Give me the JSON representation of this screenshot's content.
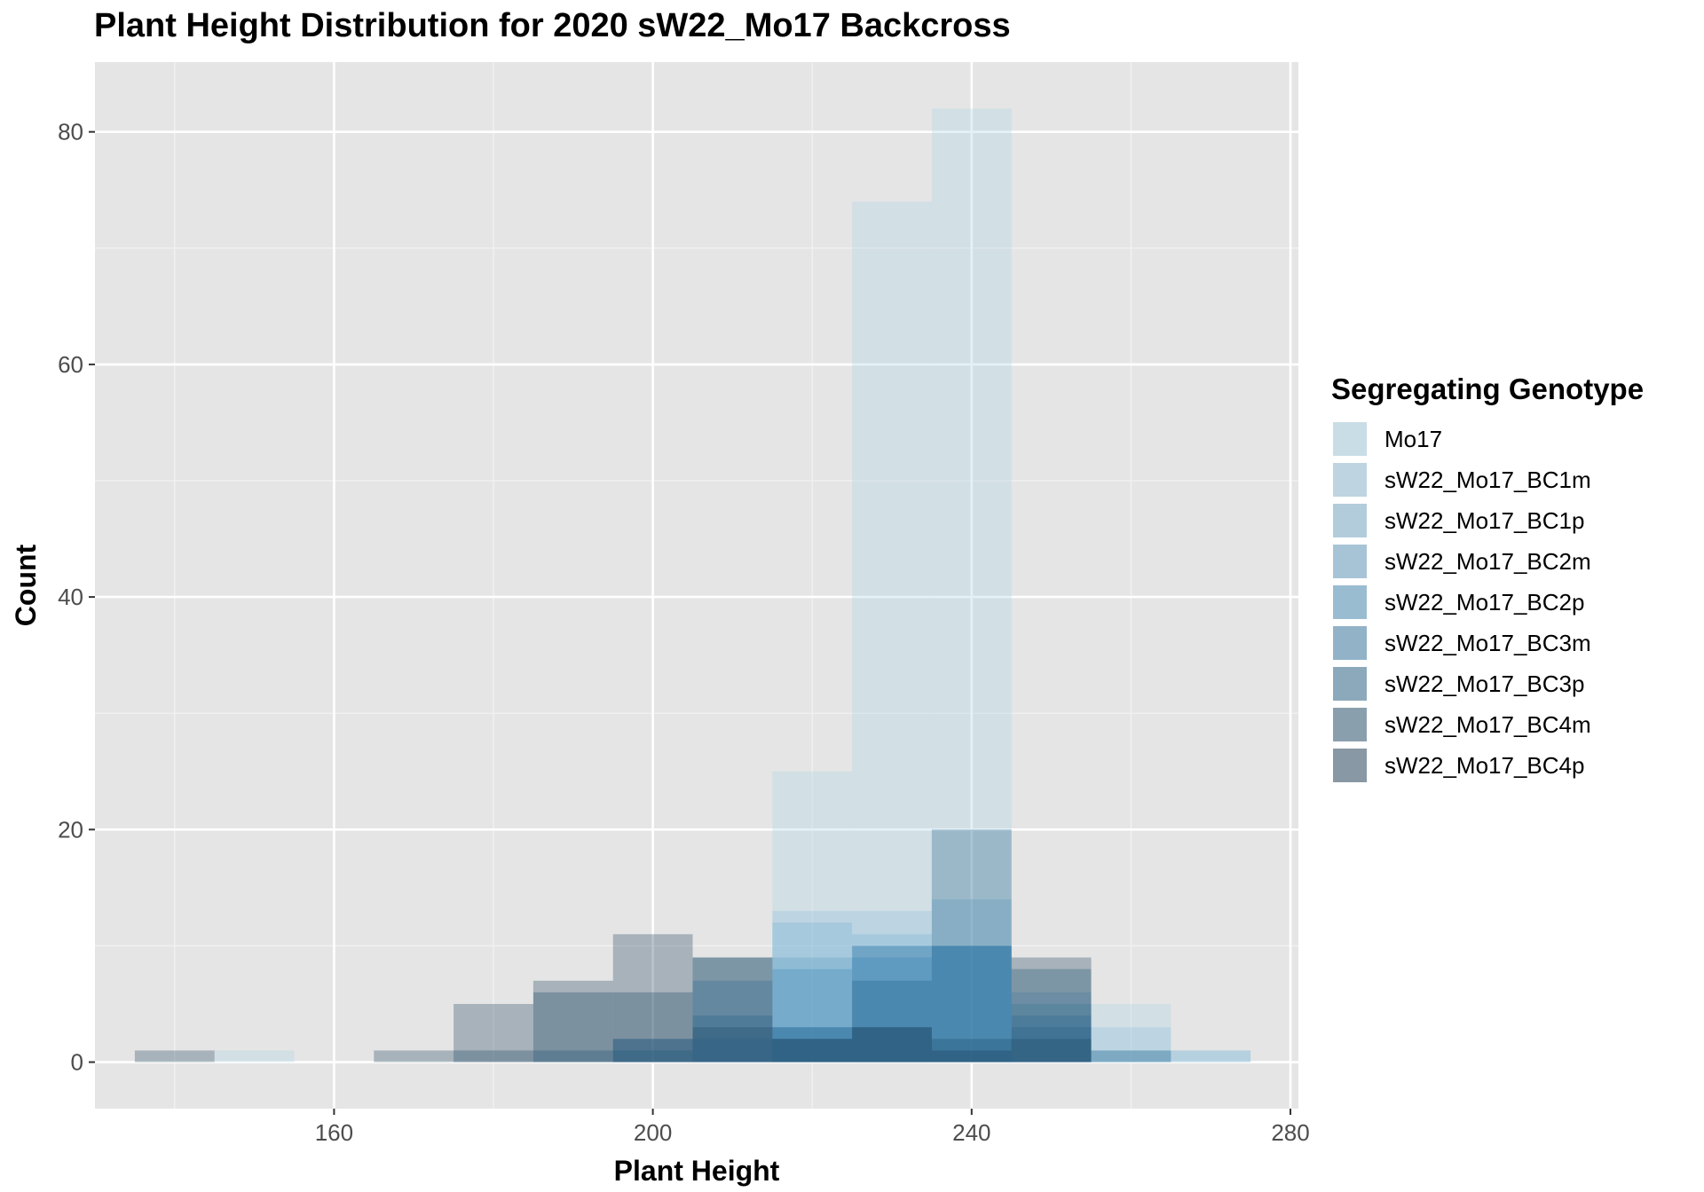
{
  "chart_data": {
    "type": "bar",
    "title": "Plant Height Distribution for 2020 sW22_Mo17 Backcross",
    "xlabel": "Plant Height",
    "ylabel": "Count",
    "xlim": [
      130,
      281
    ],
    "ylim": [
      -4,
      86
    ],
    "x_ticks": [
      160,
      200,
      240,
      280
    ],
    "x_minor": [
      140,
      180,
      220,
      260
    ],
    "y_ticks": [
      0,
      20,
      40,
      60,
      80
    ],
    "y_minor": [
      10,
      30,
      50,
      70
    ],
    "bin_width": 10,
    "bar_opacity": 0.3,
    "grid": true,
    "legend_title": "Segregating Genotype",
    "legend_position": "right",
    "series": [
      {
        "name": "Mo17",
        "color": "#a6d2e6",
        "bins": [
          [
            150,
            1
          ],
          [
            220,
            25
          ],
          [
            230,
            74
          ],
          [
            240,
            82
          ],
          [
            260,
            5
          ],
          [
            270,
            1
          ]
        ]
      },
      {
        "name": "sW22_Mo17_BC1m",
        "color": "#8dc1db",
        "bins": [
          [
            220,
            13
          ],
          [
            230,
            13
          ],
          [
            240,
            10
          ],
          [
            260,
            3
          ]
        ]
      },
      {
        "name": "sW22_Mo17_BC1p",
        "color": "#74aed0",
        "bins": [
          [
            220,
            12
          ],
          [
            230,
            11
          ],
          [
            240,
            14
          ],
          [
            250,
            6
          ],
          [
            260,
            1
          ],
          [
            270,
            1
          ]
        ]
      },
      {
        "name": "sW22_Mo17_BC2m",
        "color": "#5a9cc4",
        "bins": [
          [
            210,
            2
          ],
          [
            220,
            9
          ],
          [
            230,
            10
          ],
          [
            240,
            10
          ],
          [
            250,
            5
          ]
        ]
      },
      {
        "name": "sW22_Mo17_BC2p",
        "color": "#3f89b8",
        "bins": [
          [
            200,
            2
          ],
          [
            210,
            7
          ],
          [
            220,
            8
          ],
          [
            230,
            9
          ],
          [
            240,
            10
          ],
          [
            250,
            4
          ]
        ]
      },
      {
        "name": "sW22_Mo17_BC3m",
        "color": "#2c74a4",
        "bins": [
          [
            200,
            1
          ],
          [
            210,
            4
          ],
          [
            220,
            3
          ],
          [
            230,
            10
          ],
          [
            240,
            10
          ],
          [
            250,
            3
          ]
        ]
      },
      {
        "name": "sW22_Mo17_BC3p",
        "color": "#1f5f89",
        "bins": [
          [
            190,
            1
          ],
          [
            200,
            2
          ],
          [
            210,
            9
          ],
          [
            220,
            3
          ],
          [
            230,
            7
          ],
          [
            240,
            20
          ],
          [
            250,
            8
          ],
          [
            260,
            1
          ]
        ]
      },
      {
        "name": "sW22_Mo17_BC4m",
        "color": "#1b4a6b",
        "bins": [
          [
            180,
            1
          ],
          [
            190,
            6
          ],
          [
            200,
            6
          ],
          [
            210,
            3
          ],
          [
            220,
            2
          ],
          [
            230,
            3
          ],
          [
            240,
            2
          ],
          [
            250,
            2
          ]
        ]
      },
      {
        "name": "sW22_Mo17_BC4p",
        "color": "#173a55",
        "bins": [
          [
            140,
            1
          ],
          [
            170,
            1
          ],
          [
            180,
            5
          ],
          [
            190,
            7
          ],
          [
            200,
            11
          ],
          [
            210,
            9
          ],
          [
            220,
            2
          ],
          [
            230,
            3
          ],
          [
            240,
            1
          ],
          [
            250,
            9
          ]
        ]
      }
    ]
  }
}
